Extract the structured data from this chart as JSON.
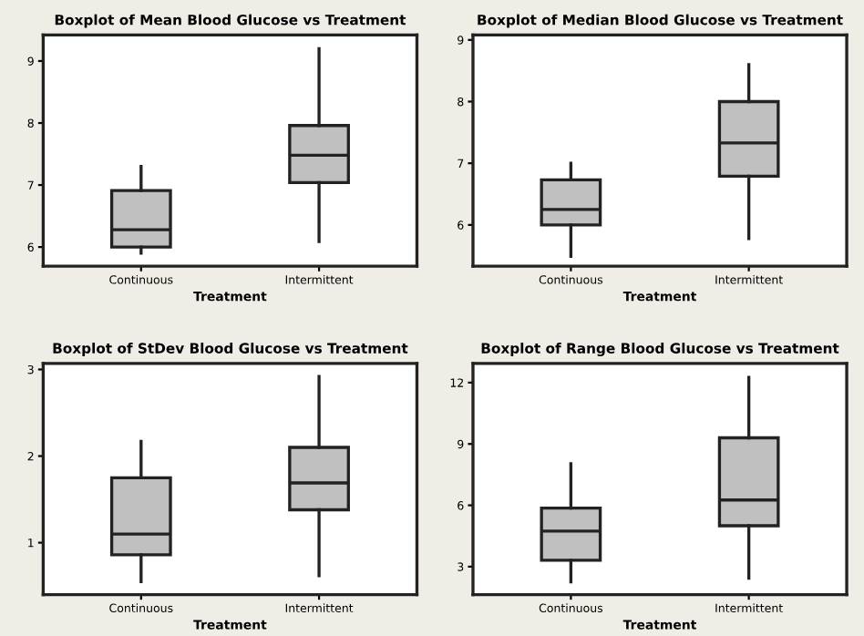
{
  "chart_data": [
    {
      "type": "box",
      "title": "Boxplot of Mean Blood Glucose vs Treatment",
      "xlabel": "Treatment",
      "categories": [
        "Continuous",
        "Intermittent"
      ],
      "color": "#c0c0c0",
      "ylim": [
        5.69,
        9.42
      ],
      "yticks": [
        6,
        7,
        8,
        9
      ],
      "grid": false,
      "boxes": [
        {
          "low": 5.9,
          "q1": 6.0,
          "median": 6.28,
          "q3": 6.91,
          "high": 7.3
        },
        {
          "low": 6.09,
          "q1": 7.04,
          "median": 7.48,
          "q3": 7.96,
          "high": 9.2
        }
      ]
    },
    {
      "type": "box",
      "title": "Boxplot of Median Blood Glucose vs Treatment",
      "xlabel": "Treatment",
      "categories": [
        "Continuous",
        "Intermittent"
      ],
      "color": "#c0c0c0",
      "ylim": [
        5.33,
        9.08
      ],
      "yticks": [
        6,
        7,
        8,
        9
      ],
      "grid": false,
      "boxes": [
        {
          "low": 5.49,
          "q1": 6.0,
          "median": 6.25,
          "q3": 6.73,
          "high": 7.0
        },
        {
          "low": 5.78,
          "q1": 6.79,
          "median": 7.33,
          "q3": 8.0,
          "high": 8.6
        }
      ]
    },
    {
      "type": "box",
      "title": "Boxplot of StDev Blood Glucose vs Treatment",
      "xlabel": "Treatment",
      "categories": [
        "Continuous",
        "Intermittent"
      ],
      "color": "#c0c0c0",
      "ylim": [
        0.4,
        3.07
      ],
      "yticks": [
        1,
        2,
        3
      ],
      "grid": false,
      "boxes": [
        {
          "low": 0.55,
          "q1": 0.86,
          "median": 1.1,
          "q3": 1.75,
          "high": 2.17
        },
        {
          "low": 0.62,
          "q1": 1.38,
          "median": 1.69,
          "q3": 2.1,
          "high": 2.92
        }
      ]
    },
    {
      "type": "box",
      "title": "Boxplot of Range Blood Glucose vs Treatment",
      "xlabel": "Treatment",
      "categories": [
        "Continuous",
        "Intermittent"
      ],
      "color": "#c0c0c0",
      "ylim": [
        1.63,
        12.94
      ],
      "yticks": [
        3,
        6,
        9,
        12
      ],
      "grid": false,
      "boxes": [
        {
          "low": 2.26,
          "q1": 3.31,
          "median": 4.74,
          "q3": 5.86,
          "high": 8.03
        },
        {
          "low": 2.43,
          "q1": 5.0,
          "median": 6.26,
          "q3": 9.3,
          "high": 12.26
        }
      ]
    }
  ]
}
